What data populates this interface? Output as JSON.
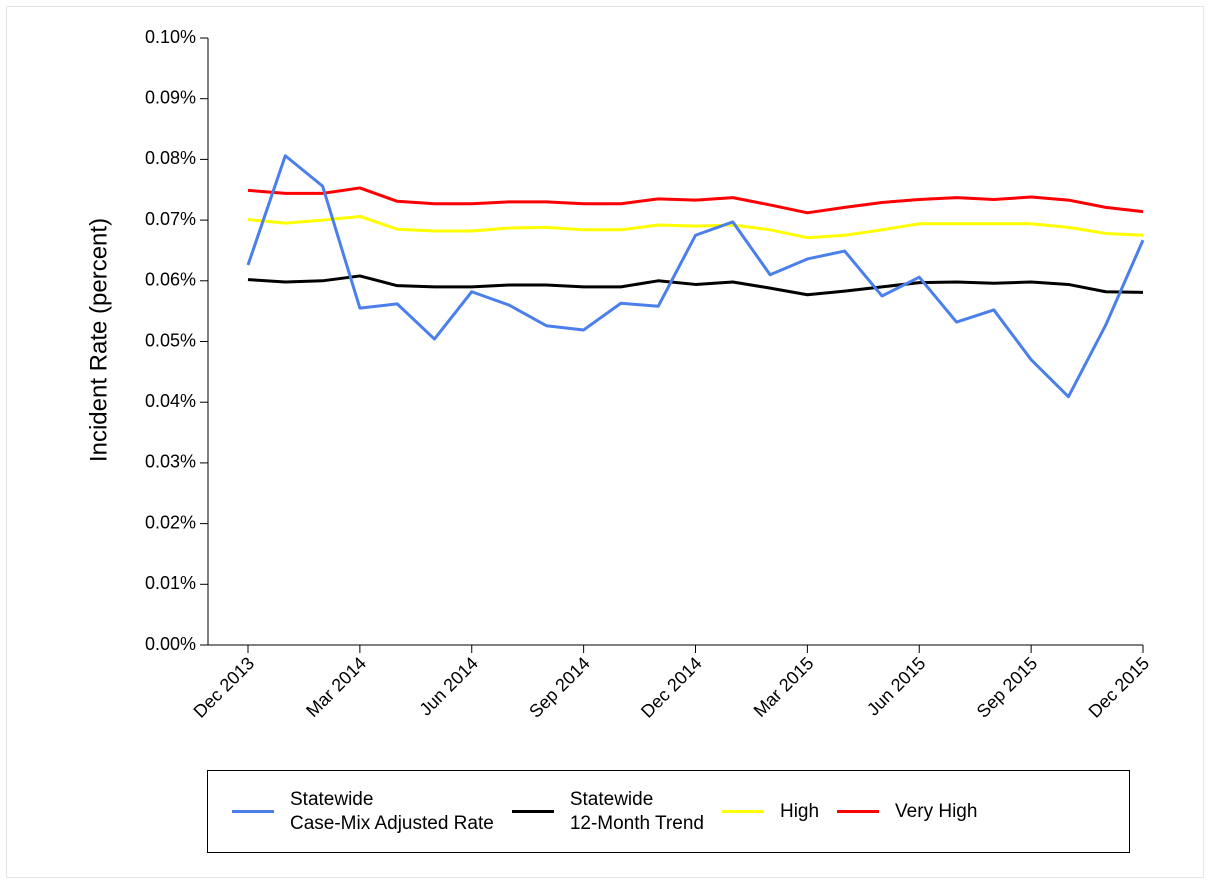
{
  "chart_data": {
    "type": "line",
    "y_label": "Incident Rate (percent)",
    "categories": [
      "Dec 2013",
      null,
      null,
      "Mar 2014",
      null,
      null,
      "Jun 2014",
      null,
      null,
      "Sep 2014",
      null,
      null,
      "Dec 2014",
      null,
      null,
      "Mar 2015",
      null,
      null,
      "Jun 2015",
      null,
      null,
      "Sep 2015",
      null,
      null,
      "Dec 2015"
    ],
    "ylim": [
      0,
      0.1
    ],
    "yticks": [
      {
        "value": 0,
        "label": "0.00%"
      },
      {
        "value": 0.01,
        "label": "0.01%"
      },
      {
        "value": 0.02,
        "label": "0.02%"
      },
      {
        "value": 0.03,
        "label": "0.03%"
      },
      {
        "value": 0.04,
        "label": "0.04%"
      },
      {
        "value": 0.05,
        "label": "0.05%"
      },
      {
        "value": 0.06,
        "label": "0.06%"
      },
      {
        "value": 0.07,
        "label": "0.07%"
      },
      {
        "value": 0.08,
        "label": "0.08%"
      },
      {
        "value": 0.09,
        "label": "0.09%"
      },
      {
        "value": 0.1,
        "label": "0.10%"
      }
    ],
    "grid": false,
    "legend": "bottom",
    "series": [
      {
        "name": "Statewide\nCase-Mix Adjusted Rate",
        "color": "#4a7fec",
        "values": [
          0.0626,
          0.0806,
          0.0756,
          0.0555,
          0.0562,
          0.0504,
          0.0582,
          0.056,
          0.0526,
          0.0519,
          0.0563,
          0.0558,
          0.0675,
          0.0697,
          0.061,
          0.0636,
          0.0649,
          0.0575,
          0.0606,
          0.0532,
          0.0552,
          0.047,
          0.0409,
          0.0527,
          0.0667
        ]
      },
      {
        "name": "Statewide\n12-Month Trend",
        "color": "#000000",
        "values": [
          0.0602,
          0.0598,
          0.06,
          0.0608,
          0.0592,
          0.059,
          0.059,
          0.0593,
          0.0593,
          0.059,
          0.059,
          0.06,
          0.0594,
          0.0598,
          0.0588,
          0.0577,
          0.0583,
          0.059,
          0.0597,
          0.0598,
          0.0596,
          0.0598,
          0.0594,
          0.0582,
          0.0581
        ]
      },
      {
        "name": "High",
        "color": "#ffff00",
        "values": [
          0.0701,
          0.0695,
          0.07,
          0.0706,
          0.0685,
          0.0682,
          0.0682,
          0.0687,
          0.0688,
          0.0684,
          0.0684,
          0.0692,
          0.069,
          0.0692,
          0.0684,
          0.0671,
          0.0675,
          0.0684,
          0.0694,
          0.0694,
          0.0694,
          0.0694,
          0.0688,
          0.0678,
          0.0675
        ]
      },
      {
        "name": "Very High",
        "color": "#ff0000",
        "values": [
          0.0749,
          0.0744,
          0.0744,
          0.0753,
          0.0731,
          0.0727,
          0.0727,
          0.073,
          0.073,
          0.0727,
          0.0727,
          0.0735,
          0.0733,
          0.0737,
          0.0725,
          0.0712,
          0.0721,
          0.0729,
          0.0734,
          0.0737,
          0.0734,
          0.0738,
          0.0733,
          0.0721,
          0.0714
        ]
      }
    ]
  }
}
